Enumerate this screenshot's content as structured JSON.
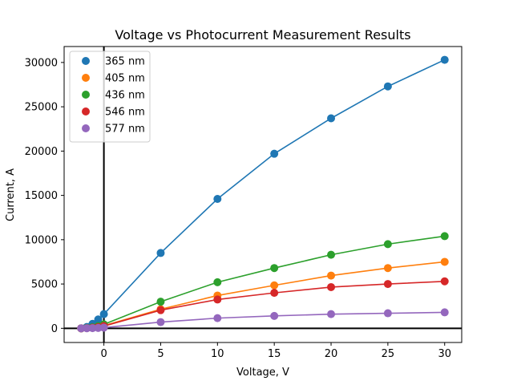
{
  "chart_data": {
    "type": "line",
    "title": "Voltage vs Photocurrent Measurement Results",
    "xlabel": "Voltage, V",
    "ylabel": "Current, A",
    "xlim": [
      -3.5,
      31.5
    ],
    "ylim": [
      -1600,
      31800
    ],
    "xticks": [
      0,
      5,
      10,
      15,
      20,
      25,
      30
    ],
    "yticks": [
      0,
      5000,
      10000,
      15000,
      20000,
      25000,
      30000
    ],
    "grid": false,
    "legend_position": "top-left",
    "reference_lines": {
      "x": 0,
      "y": 0,
      "color": "#000000"
    },
    "series": [
      {
        "name": "365 nm",
        "color": "#1f77b4",
        "x": [
          -2,
          -1.5,
          -1,
          -0.5,
          0,
          5,
          10,
          15,
          20,
          25,
          30
        ],
        "y": [
          0,
          150,
          500,
          1000,
          1600,
          8500,
          14600,
          19700,
          23700,
          27300,
          30300
        ]
      },
      {
        "name": "405 nm",
        "color": "#ff7f0e",
        "x": [
          -2,
          -1.5,
          -1,
          -0.5,
          0,
          5,
          10,
          15,
          20,
          25,
          30
        ],
        "y": [
          0,
          30,
          80,
          150,
          300,
          2150,
          3700,
          4850,
          5950,
          6800,
          7500
        ]
      },
      {
        "name": "436 nm",
        "color": "#2ca02c",
        "x": [
          -2,
          -1.5,
          -1,
          -0.5,
          0,
          5,
          10,
          15,
          20,
          25,
          30
        ],
        "y": [
          0,
          40,
          120,
          250,
          450,
          3000,
          5200,
          6800,
          8300,
          9500,
          10400
        ]
      },
      {
        "name": "546 nm",
        "color": "#d62728",
        "x": [
          -2,
          -1.5,
          -1,
          -0.5,
          0,
          5,
          10,
          15,
          20,
          25,
          30
        ],
        "y": [
          0,
          20,
          60,
          130,
          250,
          2050,
          3250,
          4000,
          4650,
          5000,
          5300
        ]
      },
      {
        "name": "577 nm",
        "color": "#9467bd",
        "x": [
          -2,
          -1.5,
          -1,
          -0.5,
          0,
          5,
          10,
          15,
          20,
          25,
          30
        ],
        "y": [
          0,
          10,
          20,
          40,
          80,
          700,
          1150,
          1400,
          1600,
          1700,
          1800
        ]
      }
    ]
  }
}
